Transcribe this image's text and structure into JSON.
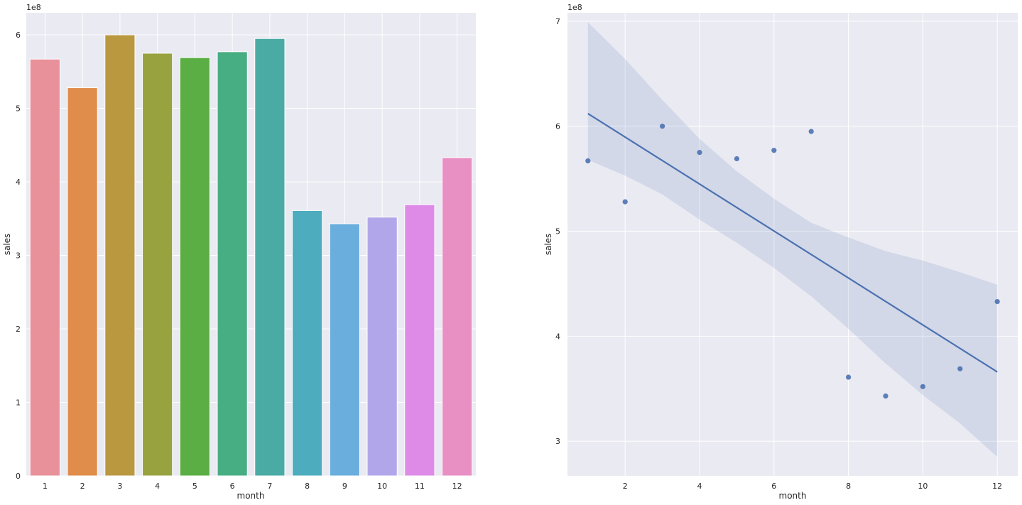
{
  "chart_data": [
    {
      "type": "bar",
      "categories": [
        "1",
        "2",
        "3",
        "4",
        "5",
        "6",
        "7",
        "8",
        "9",
        "10",
        "11",
        "12"
      ],
      "values": [
        567000000,
        528000000,
        600000000,
        575000000,
        569000000,
        577000000,
        595000000,
        361000000,
        343000000,
        352000000,
        369000000,
        433000000
      ],
      "colors": [
        "#e8919b",
        "#e08c4a",
        "#b99840",
        "#98a340",
        "#5aae44",
        "#47ad82",
        "#4aaba5",
        "#4dacbe",
        "#6aaede",
        "#b2a6ea",
        "#de8be8",
        "#e88fc4"
      ],
      "xlabel": "month",
      "ylabel": "sales",
      "ylim": [
        0,
        630000000
      ],
      "yticks": [
        0,
        100000000,
        200000000,
        300000000,
        400000000,
        500000000,
        600000000
      ],
      "ytick_labels": [
        "0",
        "1",
        "2",
        "3",
        "4",
        "5",
        "6"
      ],
      "offset_text": "1e8",
      "grid": true
    },
    {
      "type": "scatter",
      "x": [
        1,
        2,
        3,
        4,
        5,
        6,
        7,
        8,
        9,
        10,
        11,
        12
      ],
      "y": [
        567000000,
        528000000,
        600000000,
        575000000,
        569000000,
        577000000,
        595000000,
        361000000,
        343000000,
        352000000,
        369000000,
        433000000
      ],
      "regression_line": {
        "x": [
          1,
          12
        ],
        "y": [
          612000000,
          366000000
        ]
      },
      "confidence_band": {
        "x": [
          1,
          2,
          3,
          4,
          5,
          6,
          7,
          8,
          9,
          10,
          11,
          12
        ],
        "upper": [
          699000000,
          664000000,
          625000000,
          588000000,
          557000000,
          531000000,
          508000000,
          494000000,
          481000000,
          472000000,
          461000000,
          449000000
        ],
        "lower": [
          568000000,
          553000000,
          535000000,
          511000000,
          489000000,
          465000000,
          438000000,
          407000000,
          374000000,
          344000000,
          317000000,
          285000000
        ]
      },
      "xlabel": "month",
      "ylabel": "sales",
      "xlim": [
        0.45,
        12.55
      ],
      "ylim": [
        267000000,
        708000000
      ],
      "xticks": [
        2,
        4,
        6,
        8,
        10,
        12
      ],
      "yticks": [
        300000000,
        400000000,
        500000000,
        600000000,
        700000000
      ],
      "ytick_labels": [
        "3",
        "4",
        "5",
        "6",
        "7"
      ],
      "offset_text": "1e8",
      "point_color": "#4c72b0",
      "grid": true
    }
  ]
}
